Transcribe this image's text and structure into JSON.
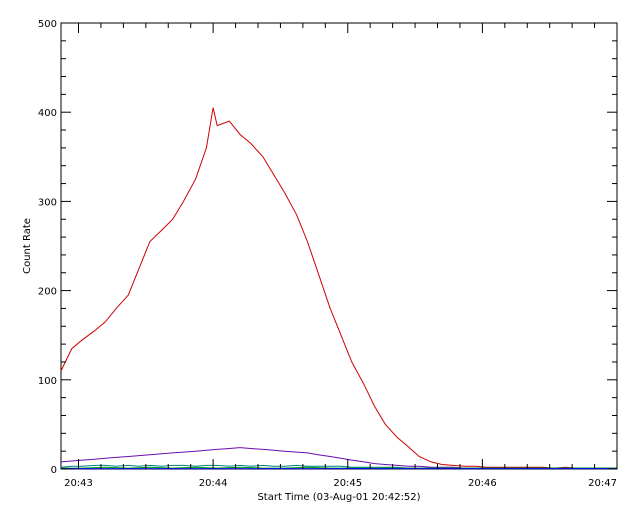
{
  "chart_data": {
    "type": "line",
    "title": "",
    "xlabel": "Start Time (03-Aug-01 20:42:52)",
    "ylabel": "Count Rate",
    "x_unit": "minutes",
    "xlim": [
      42.87,
      47.0
    ],
    "ylim": [
      0,
      500
    ],
    "x_ticks": [
      {
        "value": 43,
        "label": "20:43"
      },
      {
        "value": 44,
        "label": "20:44"
      },
      {
        "value": 45,
        "label": "20:45"
      },
      {
        "value": 46,
        "label": "20:46"
      },
      {
        "value": 47,
        "label": "20:47"
      }
    ],
    "y_ticks": [
      {
        "value": 0,
        "label": "0"
      },
      {
        "value": 100,
        "label": "100"
      },
      {
        "value": 200,
        "label": "200"
      },
      {
        "value": 300,
        "label": "300"
      },
      {
        "value": 400,
        "label": "400"
      },
      {
        "value": 500,
        "label": "500"
      }
    ],
    "grid": false,
    "legend": false,
    "series": [
      {
        "color": "#cc0000",
        "x": [
          42.87,
          42.95,
          43.03,
          43.12,
          43.2,
          43.28,
          43.37,
          43.45,
          43.53,
          43.62,
          43.7,
          43.78,
          43.87,
          43.95,
          44.0,
          44.03,
          44.12,
          44.2,
          44.28,
          44.37,
          44.45,
          44.53,
          44.62,
          44.7,
          44.78,
          44.87,
          44.95,
          45.03,
          45.12,
          45.2,
          45.28,
          45.37,
          45.45,
          45.53,
          45.62,
          45.7,
          45.78,
          45.87,
          45.95,
          46.03,
          46.12,
          46.2,
          46.28,
          46.37,
          46.45,
          46.53,
          46.62,
          46.7,
          46.78,
          46.87,
          46.95,
          47.0
        ],
        "y": [
          110,
          135,
          145,
          155,
          165,
          180,
          195,
          225,
          255,
          268,
          280,
          300,
          325,
          360,
          405,
          385,
          390,
          375,
          365,
          350,
          330,
          310,
          285,
          255,
          220,
          180,
          150,
          120,
          95,
          70,
          50,
          35,
          25,
          14,
          8,
          5,
          4,
          3,
          3,
          2,
          2,
          2,
          2,
          2,
          2,
          1,
          2,
          1,
          1,
          1,
          1,
          1
        ]
      },
      {
        "color": "#6a0dad",
        "x": [
          42.87,
          42.95,
          43.03,
          43.12,
          43.2,
          43.28,
          43.37,
          43.45,
          43.53,
          43.62,
          43.7,
          43.78,
          43.87,
          43.95,
          44.03,
          44.12,
          44.2,
          44.28,
          44.37,
          44.45,
          44.53,
          44.62,
          44.7,
          44.78,
          44.87,
          44.95,
          45.03,
          45.12,
          45.2,
          45.28,
          45.37,
          45.45,
          45.53,
          45.62,
          45.7,
          45.78,
          45.87,
          45.95,
          46.03,
          46.12,
          46.2,
          46.28,
          46.37,
          46.45,
          46.53,
          46.62,
          46.7,
          46.78,
          46.87,
          46.95,
          47.0
        ],
        "y": [
          8,
          9,
          10,
          11,
          12,
          13,
          14,
          15,
          16,
          17,
          18,
          19,
          20,
          21,
          22,
          23,
          24,
          23,
          22,
          21,
          20,
          19,
          18,
          16,
          14,
          12,
          10,
          8,
          6,
          5,
          4,
          3,
          3,
          2,
          2,
          2,
          1,
          1,
          1,
          1,
          1,
          1,
          1,
          1,
          1,
          1,
          1,
          1,
          1,
          1,
          1
        ]
      },
      {
        "color": "#008080",
        "x": [
          42.87,
          42.95,
          43.03,
          43.12,
          43.2,
          43.28,
          43.37,
          43.45,
          43.53,
          43.62,
          43.7,
          43.78,
          43.87,
          43.95,
          44.03,
          44.12,
          44.2,
          44.28,
          44.37,
          44.45,
          44.53,
          44.62,
          44.7,
          44.78,
          44.87,
          44.95,
          45.03,
          45.12,
          45.2,
          45.28,
          45.37,
          45.45,
          45.53,
          45.62,
          45.7,
          45.78,
          45.87,
          45.95,
          46.03,
          46.12,
          46.2,
          46.28,
          46.37,
          46.45,
          46.53,
          46.62,
          46.7,
          46.78,
          46.87,
          46.95,
          47.0
        ],
        "y": [
          2,
          3,
          3,
          4,
          4,
          3,
          4,
          3,
          4,
          3,
          4,
          4,
          3,
          4,
          4,
          3,
          4,
          3,
          4,
          3,
          3,
          4,
          3,
          3,
          3,
          3,
          2,
          2,
          2,
          2,
          2,
          1,
          1,
          1,
          1,
          1,
          1,
          1,
          1,
          1,
          1,
          1,
          1,
          1,
          1,
          1,
          1,
          1,
          1,
          1,
          1
        ]
      },
      {
        "color": "#00a000",
        "x": [
          42.87,
          43.03,
          43.2,
          43.37,
          43.53,
          43.7,
          43.87,
          44.03,
          44.2,
          44.37,
          44.53,
          44.7,
          44.87,
          45.03,
          45.2,
          45.37,
          45.53,
          45.7,
          45.87,
          46.03,
          46.2,
          46.37,
          46.53,
          46.7,
          46.87,
          47.0
        ],
        "y": [
          1,
          1,
          2,
          1,
          2,
          1,
          2,
          1,
          2,
          1,
          1,
          2,
          1,
          1,
          1,
          1,
          1,
          1,
          1,
          1,
          1,
          1,
          1,
          1,
          1,
          1
        ]
      },
      {
        "color": "#0000ff",
        "x": [
          42.87,
          43.2,
          43.53,
          43.87,
          44.2,
          44.53,
          44.87,
          45.2,
          45.53,
          45.87,
          46.2,
          46.53,
          46.87,
          47.0
        ],
        "y": [
          0.5,
          0.5,
          0.5,
          0.5,
          0.5,
          0.5,
          0.5,
          0.5,
          0.5,
          0.5,
          0.5,
          0.5,
          0.5,
          0.5
        ]
      }
    ]
  }
}
